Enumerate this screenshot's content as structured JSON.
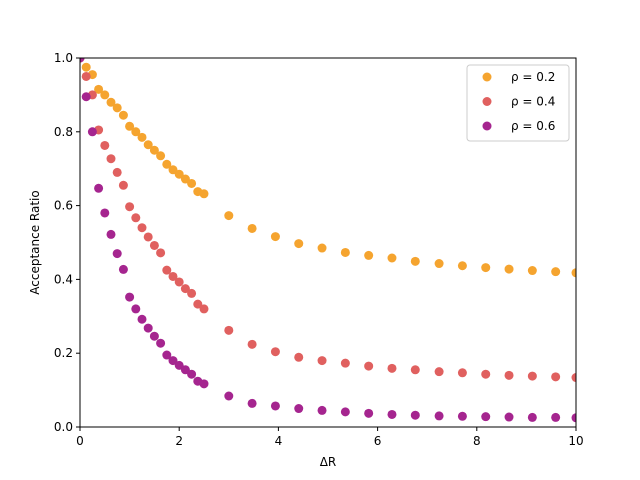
{
  "chart_data": {
    "type": "scatter",
    "title": "",
    "xlabel": "ΔR",
    "ylabel": "Acceptance Ratio",
    "xlim": [
      0,
      10
    ],
    "ylim": [
      0,
      1.0
    ],
    "xticks": [
      0,
      2,
      4,
      6,
      8,
      10
    ],
    "xtick_labels": [
      "0",
      "2",
      "4",
      "6",
      "8",
      "10"
    ],
    "yticks": [
      0.0,
      0.2,
      0.4,
      0.6,
      0.8,
      1.0
    ],
    "ytick_labels": [
      "0.0",
      "0.2",
      "0.4",
      "0.6",
      "0.8",
      "1.0"
    ],
    "grid": false,
    "legend_position": "top-right",
    "series": [
      {
        "name": "ρ = 0.2",
        "color": "#f5a42f",
        "x": [
          0.0,
          0.125,
          0.25,
          0.375,
          0.5,
          0.625,
          0.75,
          0.875,
          1.0,
          1.125,
          1.25,
          1.375,
          1.5,
          1.625,
          1.75,
          1.875,
          2.0,
          2.125,
          2.25,
          2.375,
          2.5,
          3.0,
          3.47,
          3.94,
          4.41,
          4.88,
          5.35,
          5.82,
          6.29,
          6.76,
          7.24,
          7.71,
          8.18,
          8.65,
          9.12,
          9.59,
          10.0
        ],
        "y": [
          1.0,
          0.975,
          0.955,
          0.915,
          0.9,
          0.88,
          0.865,
          0.845,
          0.815,
          0.8,
          0.785,
          0.765,
          0.75,
          0.735,
          0.712,
          0.697,
          0.685,
          0.672,
          0.66,
          0.638,
          0.632,
          0.573,
          0.538,
          0.516,
          0.497,
          0.485,
          0.473,
          0.465,
          0.458,
          0.449,
          0.443,
          0.437,
          0.432,
          0.428,
          0.424,
          0.421,
          0.418
        ]
      },
      {
        "name": "ρ = 0.4",
        "color": "#e0605f",
        "x": [
          0.0,
          0.125,
          0.25,
          0.375,
          0.5,
          0.625,
          0.75,
          0.875,
          1.0,
          1.125,
          1.25,
          1.375,
          1.5,
          1.625,
          1.75,
          1.875,
          2.0,
          2.125,
          2.25,
          2.375,
          2.5,
          3.0,
          3.47,
          3.94,
          4.41,
          4.88,
          5.35,
          5.82,
          6.29,
          6.76,
          7.24,
          7.71,
          8.18,
          8.65,
          9.12,
          9.59,
          10.0
        ],
        "y": [
          1.0,
          0.95,
          0.9,
          0.805,
          0.763,
          0.727,
          0.69,
          0.655,
          0.597,
          0.567,
          0.54,
          0.515,
          0.492,
          0.472,
          0.425,
          0.408,
          0.393,
          0.375,
          0.362,
          0.333,
          0.32,
          0.262,
          0.224,
          0.204,
          0.189,
          0.18,
          0.173,
          0.165,
          0.159,
          0.155,
          0.15,
          0.147,
          0.143,
          0.14,
          0.138,
          0.136,
          0.134
        ]
      },
      {
        "name": "ρ = 0.6",
        "color": "#a5258f",
        "x": [
          0.0,
          0.125,
          0.25,
          0.375,
          0.5,
          0.625,
          0.75,
          0.875,
          1.0,
          1.125,
          1.25,
          1.375,
          1.5,
          1.625,
          1.75,
          1.875,
          2.0,
          2.125,
          2.25,
          2.375,
          2.5,
          3.0,
          3.47,
          3.94,
          4.41,
          4.88,
          5.35,
          5.82,
          6.29,
          6.76,
          7.24,
          7.71,
          8.18,
          8.65,
          9.12,
          9.59,
          10.0
        ],
        "y": [
          1.0,
          0.895,
          0.8,
          0.647,
          0.58,
          0.522,
          0.47,
          0.427,
          0.352,
          0.32,
          0.292,
          0.268,
          0.246,
          0.227,
          0.195,
          0.18,
          0.167,
          0.155,
          0.143,
          0.124,
          0.117,
          0.084,
          0.064,
          0.057,
          0.05,
          0.045,
          0.041,
          0.037,
          0.034,
          0.032,
          0.03,
          0.029,
          0.028,
          0.027,
          0.026,
          0.026,
          0.025
        ]
      }
    ]
  }
}
